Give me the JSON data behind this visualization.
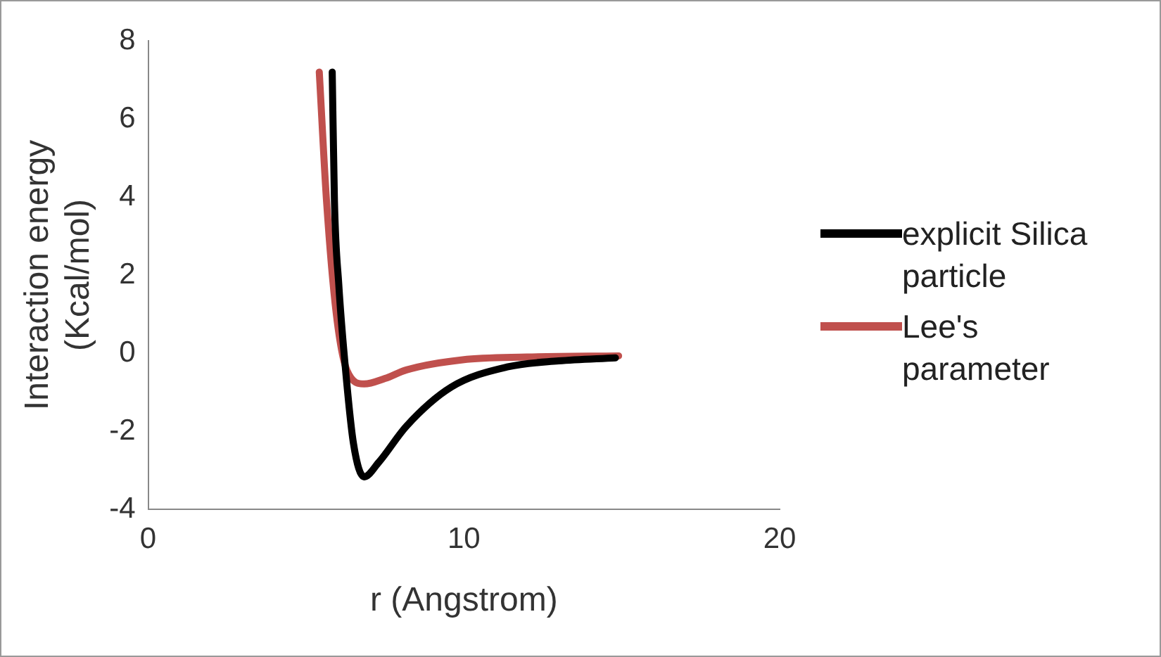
{
  "chart_data": {
    "type": "line",
    "xlabel": "r (Angstrom)",
    "ylabel": "Interaction energy (Kcal/mol)",
    "xlim": [
      0,
      20
    ],
    "xticks": [
      0,
      10,
      20
    ],
    "ylim": [
      -4,
      8
    ],
    "yticks": [
      -4,
      -2,
      0,
      2,
      4,
      6,
      8
    ],
    "grid": false,
    "legend": "right",
    "marker": "none",
    "line_style": "solid",
    "series": [
      {
        "name": "explicit Silica particle",
        "color": "#000000",
        "x": [
          5.83,
          5.9,
          6.04,
          6.22,
          6.5,
          6.84,
          7.3,
          8.18,
          9.6,
          11.4,
          13,
          14.8
        ],
        "values": [
          7.2,
          3.9,
          1.73,
          -0.14,
          -2.3,
          -3.17,
          -2.8,
          -1.87,
          -0.87,
          -0.35,
          -0.2,
          -0.12
        ]
      },
      {
        "name": "Lee's parameter",
        "color": "#c0504d",
        "x": [
          5.42,
          5.65,
          5.96,
          6.3,
          6.84,
          7.5,
          8.18,
          9.96,
          12,
          14.9
        ],
        "values": [
          7.2,
          3.9,
          1.0,
          -0.45,
          -0.79,
          -0.65,
          -0.43,
          -0.17,
          -0.1,
          -0.07
        ]
      }
    ]
  }
}
